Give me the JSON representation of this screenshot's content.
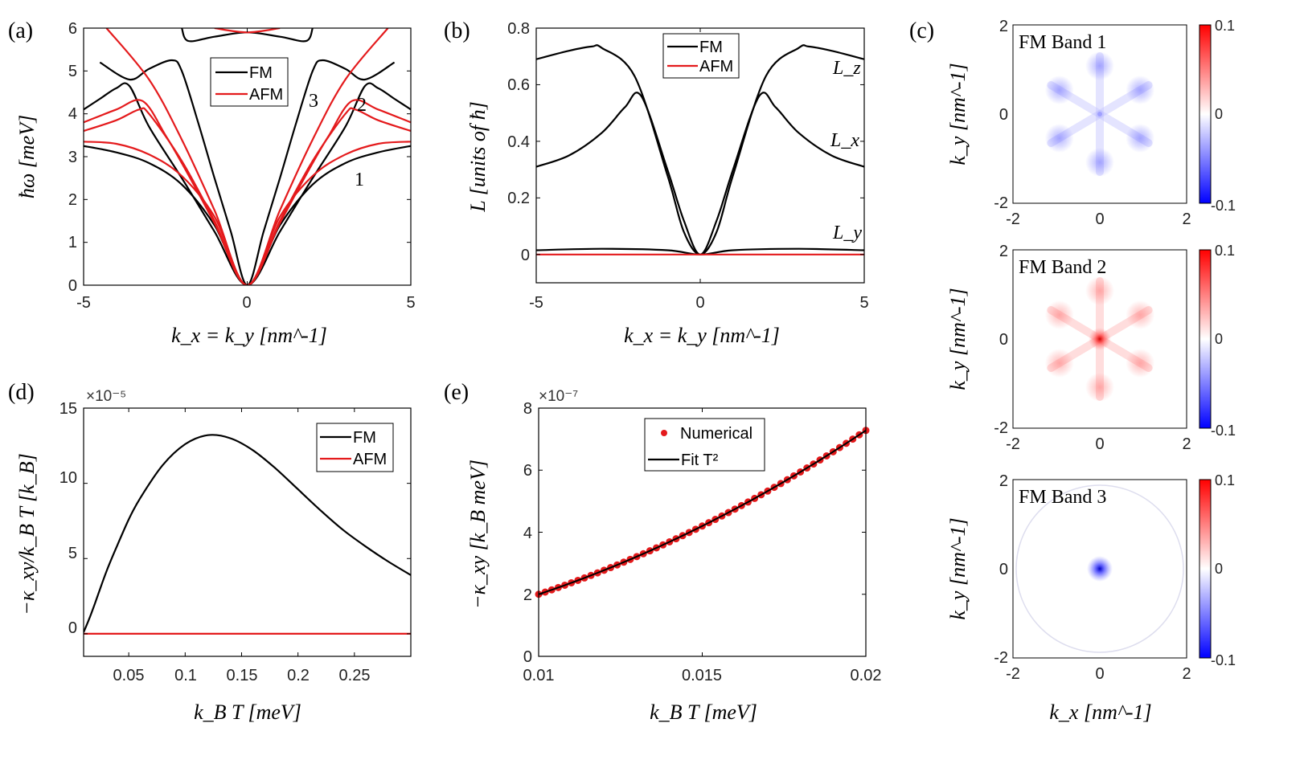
{
  "colors": {
    "fm": "#000000",
    "afm": "#e41a1c",
    "numerical": "#e41a1c",
    "fit": "#000000",
    "pos": "#ff0000",
    "neg": "#0000ff"
  },
  "chart_data": [
    {
      "id": "a",
      "panel_label": "(a)",
      "type": "line",
      "xlabel": "k_x = k_y [nm^-1]",
      "ylabel": "ħω [meV]",
      "xlim": [
        -5,
        5
      ],
      "ylim": [
        0,
        6
      ],
      "xticks": [
        "-5",
        "0",
        "5"
      ],
      "yticks": [
        "0",
        "1",
        "2",
        "3",
        "4",
        "5",
        "6"
      ],
      "legend": [
        "FM",
        "AFM"
      ],
      "legend_position": "top-center",
      "annotations": [
        "1",
        "2",
        "3"
      ],
      "series": [
        {
          "name": "FM band 1",
          "group": "FM",
          "x": [
            -5,
            -4,
            -3,
            -2,
            -1,
            0,
            1,
            2,
            3,
            4,
            5
          ],
          "y": [
            3.25,
            3.1,
            2.85,
            2.35,
            1.4,
            0,
            1.4,
            2.35,
            2.85,
            3.1,
            3.25
          ]
        },
        {
          "name": "FM band 2",
          "group": "FM",
          "x": [
            -5,
            -4.5,
            -4,
            -3.6,
            -3,
            -2,
            -1,
            0,
            1,
            2,
            3,
            3.6,
            4,
            4.5,
            5
          ],
          "y": [
            4.1,
            4.35,
            4.6,
            4.65,
            3.7,
            2.5,
            1.25,
            0,
            1.25,
            2.5,
            3.7,
            4.65,
            4.6,
            4.35,
            4.1
          ]
        },
        {
          "name": "FM band 3",
          "group": "FM",
          "x": [
            -4.5,
            -3.6,
            -3,
            -2.3,
            -2,
            -1.5,
            -1,
            -0.5,
            0,
            0.5,
            1,
            1.5,
            2,
            2.3,
            3,
            3.6,
            4.5
          ],
          "y": [
            5.2,
            4.8,
            5.05,
            5.25,
            5.0,
            3.8,
            2.5,
            1.25,
            0,
            1.25,
            2.5,
            3.8,
            5.0,
            5.25,
            5.05,
            4.8,
            5.2
          ]
        },
        {
          "name": "FM high",
          "group": "FM",
          "x": [
            -2,
            -1.8,
            -1,
            0,
            1,
            1.8,
            2
          ],
          "y": [
            6,
            5.7,
            5.8,
            5.9,
            5.8,
            5.7,
            6
          ]
        },
        {
          "name": "AFM band 1",
          "group": "AFM",
          "x": [
            -5,
            -4,
            -3,
            -2,
            -1,
            0,
            1,
            2,
            3,
            4,
            5
          ],
          "y": [
            3.35,
            3.3,
            3.05,
            2.55,
            1.6,
            0,
            1.6,
            2.55,
            3.05,
            3.3,
            3.35
          ]
        },
        {
          "name": "AFM band 2",
          "group": "AFM",
          "x": [
            -5,
            -4,
            -3.3,
            -3,
            -2,
            -1,
            0,
            1,
            2,
            3,
            3.3,
            4,
            5
          ],
          "y": [
            3.6,
            3.85,
            4.1,
            4.0,
            2.9,
            1.5,
            0,
            1.5,
            2.9,
            4.0,
            4.1,
            3.85,
            3.6
          ]
        },
        {
          "name": "AFM band 3",
          "group": "AFM",
          "x": [
            -5,
            -4,
            -3.2,
            -2.5,
            -2,
            -1,
            0,
            1,
            2,
            2.5,
            3.2,
            4,
            5
          ],
          "y": [
            3.8,
            4.1,
            4.3,
            3.5,
            2.85,
            1.45,
            0,
            1.45,
            2.85,
            3.5,
            4.3,
            4.1,
            3.8
          ]
        },
        {
          "name": "AFM band 4",
          "group": "AFM",
          "x": [
            -4.3,
            -3,
            -2,
            -1,
            0,
            1,
            2,
            3,
            4.3
          ],
          "y": [
            6,
            4.8,
            3.4,
            1.75,
            0,
            1.75,
            3.4,
            4.8,
            6
          ]
        },
        {
          "name": "AFM high",
          "group": "AFM",
          "x": [
            -1,
            0,
            1
          ],
          "y": [
            6,
            5.9,
            6
          ]
        }
      ]
    },
    {
      "id": "b",
      "panel_label": "(b)",
      "type": "line",
      "xlabel": "k_x = k_y [nm^-1]",
      "ylabel": "L [units of ħ]",
      "xlim": [
        -5,
        5
      ],
      "ylim": [
        -0.1,
        0.8
      ],
      "xticks": [
        "-5",
        "0",
        "5"
      ],
      "yticks": [
        "0",
        "0.2",
        "0.4",
        "0.6",
        "0.8"
      ],
      "legend": [
        "FM",
        "AFM"
      ],
      "legend_position": "top-center",
      "annotations": [
        "L_z",
        "L_x",
        "L_y"
      ],
      "series": [
        {
          "name": "L_z",
          "group": "FM",
          "x": [
            -5,
            -4,
            -3.3,
            -3,
            -2,
            -1,
            -0.5,
            0,
            0.5,
            1,
            2,
            3,
            3.3,
            4,
            5
          ],
          "y": [
            0.69,
            0.72,
            0.735,
            0.73,
            0.63,
            0.28,
            0.08,
            0,
            0.08,
            0.28,
            0.63,
            0.73,
            0.735,
            0.72,
            0.69
          ]
        },
        {
          "name": "L_x",
          "group": "FM",
          "x": [
            -5,
            -4,
            -3,
            -2.3,
            -1.8,
            -1,
            -0.5,
            0,
            0.5,
            1,
            1.8,
            2.3,
            3,
            4,
            5
          ],
          "y": [
            0.31,
            0.35,
            0.43,
            0.52,
            0.56,
            0.3,
            0.12,
            0,
            0.12,
            0.3,
            0.56,
            0.52,
            0.43,
            0.35,
            0.31
          ]
        },
        {
          "name": "L_y",
          "group": "FM",
          "x": [
            -5,
            -3,
            -1,
            0,
            1,
            3,
            5
          ],
          "y": [
            0.015,
            0.02,
            0.015,
            0,
            0.015,
            0.02,
            0.015
          ]
        },
        {
          "name": "AFM",
          "group": "AFM",
          "x": [
            -5,
            5
          ],
          "y": [
            0,
            0
          ]
        }
      ]
    },
    {
      "id": "d",
      "panel_label": "(d)",
      "type": "line",
      "xlabel": "k_B T [meV]",
      "ylabel": "−κ_xy/k_B T [k_B]",
      "multiplier": "×10⁻⁵",
      "xlim": [
        0.01,
        0.3
      ],
      "ylim": [
        -1.5,
        15
      ],
      "xticks": [
        "0.05",
        "0.1",
        "0.15",
        "0.2",
        "0.25"
      ],
      "yticks": [
        "0",
        "5",
        "10",
        "15"
      ],
      "legend": [
        "FM",
        "AFM"
      ],
      "legend_position": "top-right",
      "series": [
        {
          "name": "FM",
          "x": [
            0.01,
            0.015,
            0.02,
            0.03,
            0.04,
            0.05,
            0.06,
            0.08,
            0.1,
            0.12,
            0.14,
            0.16,
            0.18,
            0.2,
            0.22,
            0.24,
            0.26,
            0.28,
            0.3
          ],
          "y": [
            0.1,
            1.0,
            2.0,
            4.1,
            5.9,
            7.6,
            9.0,
            11.2,
            12.6,
            13.2,
            13.0,
            12.2,
            11.0,
            9.6,
            8.2,
            6.9,
            5.8,
            4.8,
            3.9
          ]
        },
        {
          "name": "AFM",
          "x": [
            0.01,
            0.3
          ],
          "y": [
            0,
            0
          ]
        }
      ]
    },
    {
      "id": "e",
      "panel_label": "(e)",
      "type": "scatter",
      "xlabel": "k_B T [meV]",
      "ylabel": "−κ_xy [k_B meV]",
      "multiplier": "×10⁻⁷",
      "xlim": [
        0.01,
        0.02
      ],
      "ylim": [
        0,
        8
      ],
      "xticks": [
        "0.01",
        "0.015",
        "0.02"
      ],
      "yticks": [
        "0",
        "2",
        "4",
        "6",
        "8"
      ],
      "legend": [
        "Numerical",
        "Fit T²"
      ],
      "legend_position": "top-center",
      "fit": {
        "form": "a + b*T^2",
        "a": 0.24,
        "b": 17600,
        "x_from": 0.01,
        "x_to": 0.02
      },
      "points": {
        "x_from": 0.01,
        "x_to": 0.02,
        "count": 51
      }
    },
    {
      "id": "c",
      "panel_label": "(c)",
      "type": "heatmap",
      "xlabel": "k_x [nm^-1]",
      "ylabel": "k_y [nm^-1]",
      "xlim": [
        -2,
        2
      ],
      "ylim": [
        -2,
        2
      ],
      "xticks": [
        "-2",
        "0",
        "2"
      ],
      "yticks": [
        "-2",
        "0",
        "2"
      ],
      "colorbar": {
        "range": [
          -0.1,
          0.1
        ],
        "ticks": [
          "0.1",
          "0",
          "-0.1"
        ]
      },
      "maps": [
        {
          "title": "FM Band 1",
          "pattern": "six-fold star",
          "sign": "negative",
          "center_peak": false
        },
        {
          "title": "FM Band 2",
          "pattern": "six-fold star",
          "sign": "positive",
          "center_peak": true
        },
        {
          "title": "FM Band 3",
          "pattern": "central spot",
          "sign": "negative",
          "center_peak": true
        }
      ]
    }
  ]
}
